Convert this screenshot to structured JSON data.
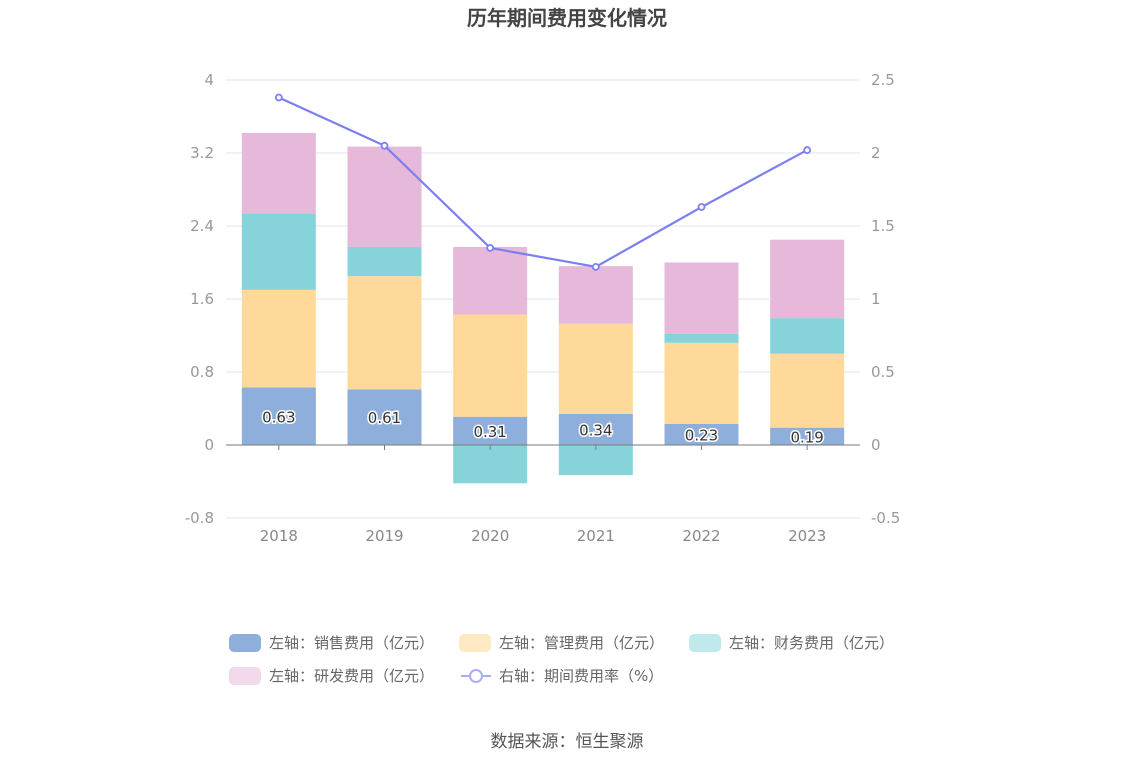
{
  "chart_data": {
    "type": "bar",
    "title": "历年期间费用变化情况",
    "categories": [
      "2018",
      "2019",
      "2020",
      "2021",
      "2022",
      "2023"
    ],
    "stacked": true,
    "y_left": {
      "min": -0.8,
      "max": 4,
      "ticks": [
        "-0.8",
        "0",
        "0.8",
        "1.6",
        "2.4",
        "3.2",
        "4"
      ]
    },
    "y_right": {
      "min": -0.5,
      "max": 2.5,
      "ticks": [
        "-0.5",
        "0",
        "0.5",
        "1",
        "1.5",
        "2",
        "2.5"
      ]
    },
    "series": [
      {
        "name": "左轴：销售费用（亿元）",
        "axis": "left",
        "color": "#8eaedb",
        "legend_color": "#8eaedb",
        "values": [
          0.63,
          0.61,
          0.31,
          0.34,
          0.23,
          0.19
        ],
        "labels": [
          "0.63",
          "0.61",
          "0.31",
          "0.34",
          "0.23",
          "0.19"
        ]
      },
      {
        "name": "左轴：管理费用（亿元）",
        "axis": "left",
        "color": "#ffd99a",
        "legend_color": "#ffe8c4",
        "values": [
          1.07,
          1.24,
          1.12,
          0.99,
          0.89,
          0.81
        ]
      },
      {
        "name": "左轴：财务费用（亿元）",
        "axis": "left",
        "color": "#86d4d9",
        "legend_color": "#bfe9ea",
        "values": [
          0.84,
          0.32,
          -0.42,
          -0.33,
          0.1,
          0.39
        ]
      },
      {
        "name": "左轴：研发费用（亿元）",
        "axis": "left",
        "color": "#e6b8d9",
        "legend_color": "#f2d9ec",
        "values": [
          0.88,
          1.1,
          0.74,
          0.63,
          0.78,
          0.86
        ]
      },
      {
        "name": "右轴：期间费用率（%）",
        "axis": "right",
        "type": "line",
        "color": "#7b7ff0",
        "values": [
          2.38,
          2.05,
          1.35,
          1.22,
          1.63,
          2.02
        ]
      }
    ],
    "source": "数据来源：恒生聚源"
  }
}
